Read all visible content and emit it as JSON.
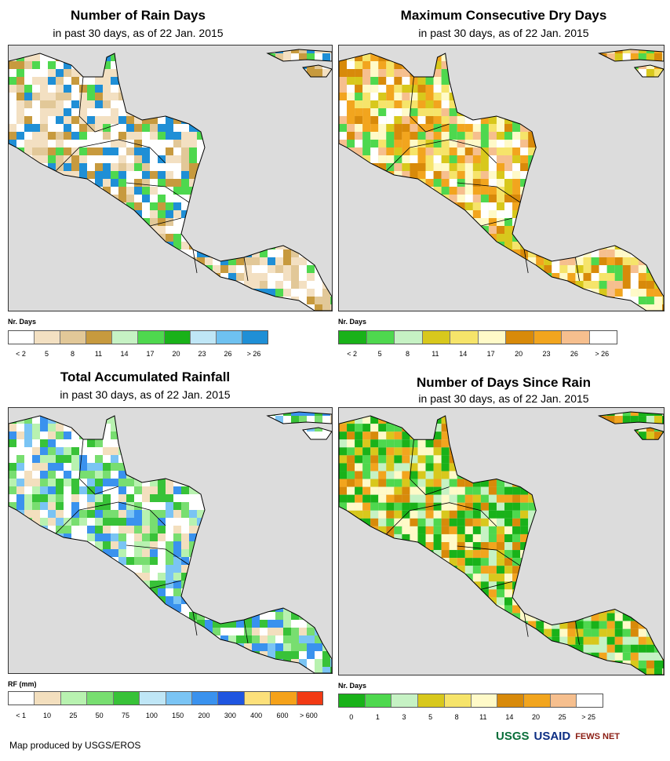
{
  "panels": [
    {
      "title": "Number of Rain Days",
      "subtitle": "in past 30 days, as of 22 Jan. 2015",
      "legend_title": "Nr. Days",
      "legend_colors": [
        "#ffffff",
        "#f3e0c2",
        "#e2c898",
        "#c79a3e",
        "#c6f2c4",
        "#4ed84e",
        "#19b219",
        "#bfe6f6",
        "#6ec1f0",
        "#1f8fd6"
      ],
      "legend_labels": [
        "< 2",
        "5",
        "8",
        "11",
        "14",
        "17",
        "20",
        "23",
        "26",
        "> 26"
      ]
    },
    {
      "title": "Maximum Consecutive Dry Days",
      "subtitle": "in past 30 days, as of 22 Jan. 2015",
      "legend_title": "Nr. Days",
      "legend_colors": [
        "#19b219",
        "#4ed84e",
        "#c6f2c4",
        "#d8c81c",
        "#f6e46a",
        "#fffac8",
        "#d88a0a",
        "#f2a51e",
        "#f6bf8e",
        "#ffffff"
      ],
      "legend_labels": [
        "< 2",
        "5",
        "8",
        "11",
        "14",
        "17",
        "20",
        "23",
        "26",
        "> 26"
      ]
    },
    {
      "title": "Total Accumulated Rainfall",
      "subtitle": "in past 30 days, as of 22 Jan. 2015",
      "legend_title": "RF (mm)",
      "legend_colors": [
        "#ffffff",
        "#f3dfbe",
        "#b8f2b0",
        "#78de70",
        "#38c238",
        "#bfe6f6",
        "#7ac4f4",
        "#3a92ee",
        "#1f55e0",
        "#fce07a",
        "#f5a21a",
        "#f23a14"
      ],
      "legend_labels": [
        "< 1",
        "10",
        "25",
        "50",
        "75",
        "100",
        "150",
        "200",
        "300",
        "400",
        "600",
        "> 600"
      ]
    },
    {
      "title": "Number of Days Since Rain",
      "subtitle": "in past 30 days, as of 22 Jan. 2015",
      "legend_title": "Nr. Days",
      "legend_colors": [
        "#19b219",
        "#4ed84e",
        "#c6f2c4",
        "#d8c81c",
        "#f6e46a",
        "#fffac8",
        "#d88a0a",
        "#f2a51e",
        "#f6bf8e",
        "#ffffff"
      ],
      "legend_labels": [
        "0",
        "1",
        "3",
        "5",
        "8",
        "11",
        "14",
        "20",
        "25",
        "> 25"
      ]
    }
  ],
  "credit": "Map produced by USGS/EROS",
  "logos": {
    "usgs": "USGS",
    "usaid": "USAID",
    "fewsnet": "FEWS NET"
  }
}
